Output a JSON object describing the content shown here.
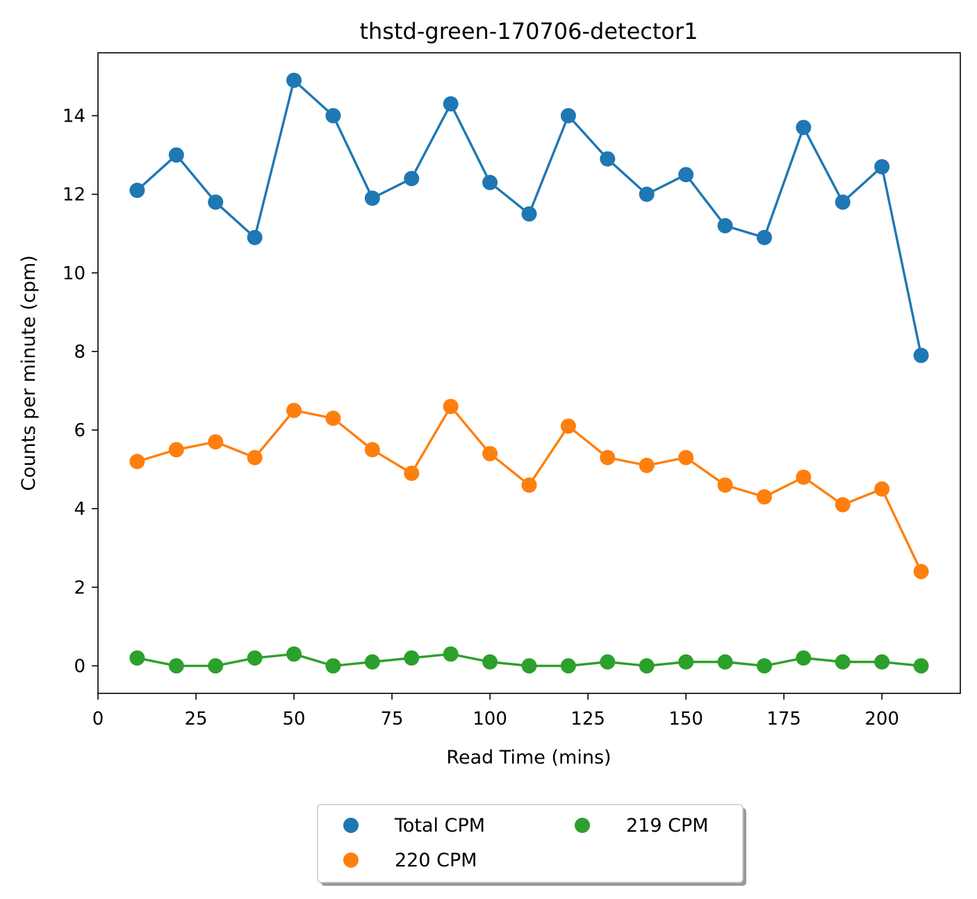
{
  "chart_data": {
    "type": "line",
    "title": "thstd-green-170706-detector1",
    "xlabel": "Read Time (mins)",
    "ylabel": "Counts per minute (cpm)",
    "xlim": [
      0,
      220
    ],
    "ylim": [
      -0.7,
      15.6
    ],
    "xticks": [
      0,
      25,
      50,
      75,
      100,
      125,
      150,
      175,
      200
    ],
    "yticks": [
      0,
      2,
      4,
      6,
      8,
      10,
      12,
      14
    ],
    "grid": false,
    "legend_position": "bottom-center",
    "x": [
      10,
      20,
      30,
      40,
      50,
      60,
      70,
      80,
      90,
      100,
      110,
      120,
      130,
      140,
      150,
      160,
      170,
      180,
      190,
      200,
      210
    ],
    "series": [
      {
        "name": "Total CPM",
        "color": "#1f77b4",
        "values": [
          12.1,
          13.0,
          11.8,
          10.9,
          14.9,
          14.0,
          11.9,
          12.4,
          14.3,
          12.3,
          11.5,
          14.0,
          12.9,
          12.0,
          12.5,
          11.2,
          10.9,
          13.7,
          11.8,
          12.7,
          7.9
        ]
      },
      {
        "name": "220 CPM",
        "color": "#ff7f0e",
        "values": [
          5.2,
          5.5,
          5.7,
          5.3,
          6.5,
          6.3,
          5.5,
          4.9,
          6.6,
          5.4,
          4.6,
          6.1,
          5.3,
          5.1,
          5.3,
          4.6,
          4.3,
          4.8,
          4.1,
          4.5,
          2.4
        ]
      },
      {
        "name": "219 CPM",
        "color": "#2ca02c",
        "values": [
          0.2,
          0.0,
          0.0,
          0.2,
          0.3,
          0.0,
          0.1,
          0.2,
          0.3,
          0.1,
          0.0,
          0.0,
          0.1,
          0.0,
          0.1,
          0.1,
          0.0,
          0.2,
          0.1,
          0.1,
          0.0
        ]
      }
    ]
  }
}
